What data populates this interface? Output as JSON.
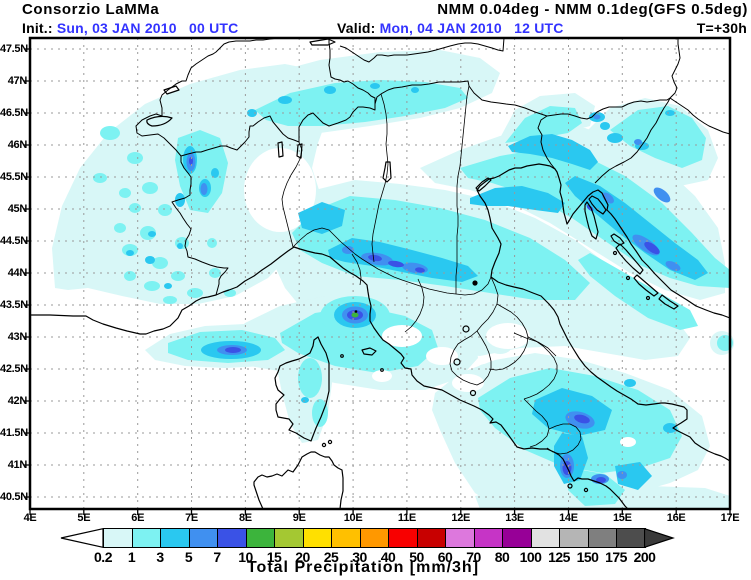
{
  "header": {
    "brand": "Consorzio LaMMa",
    "model_title": "NMM 0.04deg - NMM 0.1deg(GFS 0.5deg)",
    "init_label": "Init.: ",
    "init_value": "Sun, 03 JAN 2010   00 UTC",
    "valid_label": "Valid: ",
    "valid_value": "Mon, 04 JAN 2010   12 UTC",
    "lead_time": "T=+30h",
    "accent_color": "#3333ff"
  },
  "map": {
    "lat_labels": [
      "47.5N",
      "47N",
      "46.5N",
      "46N",
      "45.5N",
      "45N",
      "44.5N",
      "44N",
      "43.5N",
      "43N",
      "42.5N",
      "42N",
      "41.5N",
      "41N",
      "40.5N"
    ],
    "lon_labels": [
      "4E",
      "5E",
      "6E",
      "7E",
      "8E",
      "9E",
      "10E",
      "11E",
      "12E",
      "13E",
      "14E",
      "15E",
      "16E",
      "17E"
    ],
    "grid_color": "#9a9a9a"
  },
  "legend": {
    "title": "Total Precipitation [mm/3h]",
    "units": "mm/3h",
    "boundary_labels": [
      "0.2",
      "1",
      "3",
      "5",
      "7",
      "10",
      "15",
      "20",
      "25",
      "30",
      "40",
      "50",
      "60",
      "70",
      "80",
      "100",
      "125",
      "150",
      "175",
      "200"
    ],
    "cell_colors": [
      "#d8f7f7",
      "#7df2f2",
      "#2ac8f0",
      "#4090f0",
      "#3a52e6",
      "#3cb43c",
      "#a4c832",
      "#ffe000",
      "#ffc000",
      "#ff9800",
      "#f80000",
      "#c80000",
      "#dd78dd",
      "#c634c6",
      "#970097",
      "#e2e2e2",
      "#b5b5b5",
      "#7f7f7f",
      "#4d4d4d"
    ],
    "left_arrow_color": "#ffffff",
    "right_arrow_color": "#3a3a3a"
  }
}
